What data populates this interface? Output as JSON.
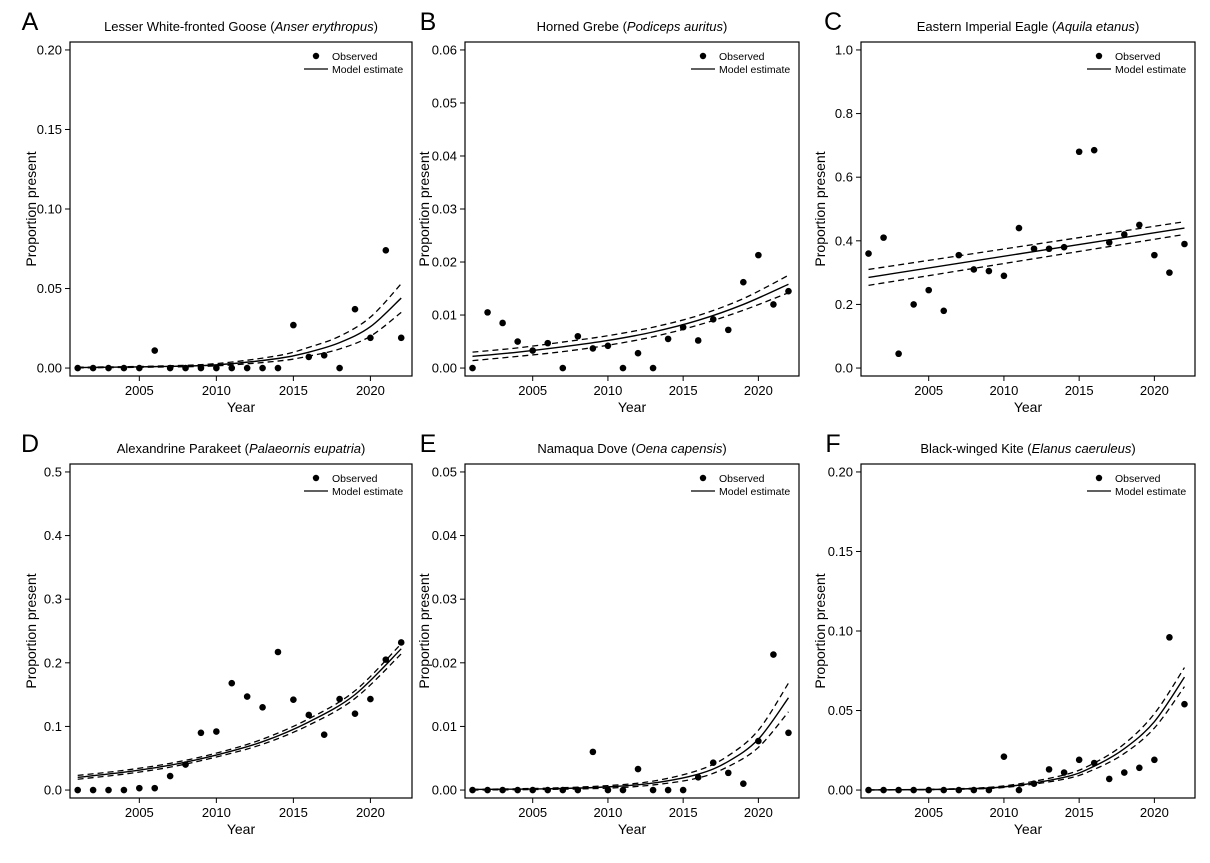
{
  "chart_data": [
    {
      "panel_letter": "A",
      "title_prefix": "Lesser White-fronted Goose (",
      "title_italic": "Anser erythropus",
      "title_suffix": ")",
      "type": "scatter",
      "xlabel": "Year",
      "ylabel": "Proportion present",
      "xlim": [
        2000.5,
        2022.7
      ],
      "ylim": [
        -0.005,
        0.205
      ],
      "xticks": [
        2005,
        2010,
        2015,
        2020
      ],
      "yticks": [
        0.0,
        0.05,
        0.1,
        0.15,
        0.2
      ],
      "ytick_labels": [
        "0.00",
        "0.05",
        "0.10",
        "0.15",
        "0.20"
      ],
      "legend": {
        "observed": "Observed",
        "model": "Model estimate",
        "position": "top-right"
      },
      "series": [
        {
          "name": "Observed",
          "x": [
            2001,
            2002,
            2003,
            2004,
            2005,
            2006,
            2007,
            2008,
            2009,
            2010,
            2011,
            2012,
            2013,
            2014,
            2015,
            2016,
            2017,
            2018,
            2019,
            2020,
            2021,
            2022
          ],
          "y": [
            0,
            0,
            0,
            0,
            0,
            0.011,
            0,
            0,
            0,
            0,
            0,
            0,
            0,
            0,
            0.027,
            0.007,
            0.008,
            0,
            0.037,
            0.019,
            0.074,
            0.019
          ]
        },
        {
          "name": "Model estimate",
          "x": [
            2001,
            2006,
            2010,
            2014,
            2016,
            2018,
            2020,
            2022
          ],
          "y": [
            0.0003,
            0.0009,
            0.002,
            0.006,
            0.01,
            0.016,
            0.026,
            0.044
          ]
        },
        {
          "x": [
            2001,
            2006,
            2010,
            2014,
            2016,
            2018,
            2020,
            2022
          ],
          "y": [
            0.0005,
            0.0012,
            0.0028,
            0.0078,
            0.013,
            0.02,
            0.032,
            0.053
          ]
        },
        {
          "x": [
            2001,
            2006,
            2010,
            2014,
            2016,
            2018,
            2020,
            2022
          ],
          "y": [
            0.0001,
            0.0006,
            0.0014,
            0.0044,
            0.0075,
            0.012,
            0.02,
            0.035
          ]
        }
      ]
    },
    {
      "panel_letter": "B",
      "title_prefix": "Horned Grebe (",
      "title_italic": "Podiceps auritus",
      "title_suffix": ")",
      "type": "scatter",
      "xlabel": "Year",
      "ylabel": "Proportion present",
      "xlim": [
        2000.5,
        2022.7
      ],
      "ylim": [
        -0.0015,
        0.0615
      ],
      "xticks": [
        2005,
        2010,
        2015,
        2020
      ],
      "yticks": [
        0.0,
        0.01,
        0.02,
        0.03,
        0.04,
        0.05,
        0.06
      ],
      "ytick_labels": [
        "0.00",
        "0.01",
        "0.02",
        "0.03",
        "0.04",
        "0.05",
        "0.06"
      ],
      "legend": {
        "observed": "Observed",
        "model": "Model estimate",
        "position": "top-right"
      },
      "series": [
        {
          "name": "Observed",
          "x": [
            2001,
            2002,
            2003,
            2004,
            2005,
            2006,
            2007,
            2008,
            2009,
            2010,
            2011,
            2012,
            2013,
            2014,
            2015,
            2016,
            2017,
            2018,
            2019,
            2020,
            2021,
            2022
          ],
          "y": [
            0,
            0.0105,
            0.0085,
            0.005,
            0.0033,
            0.0047,
            0,
            0.006,
            0.0037,
            0.0042,
            0,
            0.0028,
            0,
            0.0055,
            0.0077,
            0.0052,
            0.0092,
            0.0072,
            0.0162,
            0.0213,
            0.012,
            0.0145
          ]
        },
        {
          "name": "Model estimate",
          "x": [
            2001,
            2004,
            2007,
            2010,
            2013,
            2016,
            2019,
            2022
          ],
          "y": [
            0.0022,
            0.003,
            0.004,
            0.0052,
            0.0068,
            0.009,
            0.012,
            0.0158
          ]
        },
        {
          "x": [
            2001,
            2004,
            2007,
            2010,
            2013,
            2016,
            2019,
            2022
          ],
          "y": [
            0.003,
            0.0038,
            0.0049,
            0.0061,
            0.0077,
            0.0099,
            0.0131,
            0.0175
          ]
        },
        {
          "x": [
            2001,
            2004,
            2007,
            2010,
            2013,
            2016,
            2019,
            2022
          ],
          "y": [
            0.0014,
            0.0022,
            0.0031,
            0.0043,
            0.0059,
            0.0081,
            0.0109,
            0.0142
          ]
        }
      ]
    },
    {
      "panel_letter": "C",
      "title_prefix": "Eastern Imperial Eagle (",
      "title_italic": "Aquila  etanus",
      "title_suffix": ")",
      "type": "scatter",
      "xlabel": "Year",
      "ylabel": "Proportion present",
      "xlim": [
        2000.5,
        2022.7
      ],
      "ylim": [
        -0.025,
        1.025
      ],
      "xticks": [
        2005,
        2010,
        2015,
        2020
      ],
      "yticks": [
        0.0,
        0.2,
        0.4,
        0.6,
        0.8,
        1.0
      ],
      "ytick_labels": [
        "0.0",
        "0.2",
        "0.4",
        "0.6",
        "0.8",
        "1.0"
      ],
      "legend": {
        "observed": "Observed",
        "model": "Model estimate",
        "position": "top-right"
      },
      "series": [
        {
          "name": "Observed",
          "x": [
            2001,
            2002,
            2003,
            2004,
            2005,
            2006,
            2007,
            2008,
            2009,
            2010,
            2011,
            2012,
            2013,
            2014,
            2015,
            2016,
            2017,
            2018,
            2019,
            2020,
            2021,
            2022
          ],
          "y": [
            0.36,
            0.41,
            0.045,
            0.2,
            0.245,
            0.18,
            0.355,
            0.31,
            0.305,
            0.29,
            0.44,
            0.375,
            0.375,
            0.38,
            0.68,
            0.685,
            0.395,
            0.42,
            0.45,
            0.355,
            0.3,
            0.39
          ]
        },
        {
          "name": "Model estimate",
          "x": [
            2001,
            2022
          ],
          "y": [
            0.285,
            0.44
          ]
        },
        {
          "x": [
            2001,
            2022
          ],
          "y": [
            0.31,
            0.46
          ]
        },
        {
          "x": [
            2001,
            2022
          ],
          "y": [
            0.26,
            0.42
          ]
        }
      ]
    },
    {
      "panel_letter": "D",
      "title_prefix": "Alexandrine Parakeet (",
      "title_italic": "Palaeornis eupatria",
      "title_suffix": ")",
      "type": "scatter",
      "xlabel": "Year",
      "ylabel": "Proportion present",
      "xlim": [
        2000.5,
        2022.7
      ],
      "ylim": [
        -0.0125,
        0.5125
      ],
      "xticks": [
        2005,
        2010,
        2015,
        2020
      ],
      "yticks": [
        0.0,
        0.1,
        0.2,
        0.3,
        0.4,
        0.5
      ],
      "ytick_labels": [
        "0.0",
        "0.1",
        "0.2",
        "0.3",
        "0.4",
        "0.5"
      ],
      "legend": {
        "observed": "Observed",
        "model": "Model estimate",
        "position": "top-right"
      },
      "series": [
        {
          "name": "Observed",
          "x": [
            2001,
            2002,
            2003,
            2004,
            2005,
            2006,
            2007,
            2008,
            2009,
            2010,
            2011,
            2012,
            2013,
            2014,
            2015,
            2016,
            2017,
            2018,
            2019,
            2020,
            2021,
            2022
          ],
          "y": [
            0,
            0,
            0,
            0,
            0.003,
            0.003,
            0.022,
            0.04,
            0.09,
            0.092,
            0.168,
            0.147,
            0.13,
            0.217,
            0.142,
            0.118,
            0.087,
            0.143,
            0.12,
            0.143,
            0.205,
            0.232
          ]
        },
        {
          "name": "Model estimate",
          "x": [
            2001,
            2004,
            2007,
            2010,
            2013,
            2016,
            2019,
            2022
          ],
          "y": [
            0.02,
            0.028,
            0.039,
            0.055,
            0.076,
            0.107,
            0.15,
            0.222
          ]
        },
        {
          "x": [
            2001,
            2004,
            2007,
            2010,
            2013,
            2016,
            2019,
            2022
          ],
          "y": [
            0.023,
            0.031,
            0.042,
            0.058,
            0.08,
            0.112,
            0.156,
            0.23
          ]
        },
        {
          "x": [
            2001,
            2004,
            2007,
            2010,
            2013,
            2016,
            2019,
            2022
          ],
          "y": [
            0.017,
            0.025,
            0.036,
            0.052,
            0.072,
            0.102,
            0.144,
            0.214
          ]
        }
      ]
    },
    {
      "panel_letter": "E",
      "title_prefix": "Namaqua Dove (",
      "title_italic": "Oena capensis",
      "title_suffix": ")",
      "type": "scatter",
      "xlabel": "Year",
      "ylabel": "Proportion present",
      "xlim": [
        2000.5,
        2022.7
      ],
      "ylim": [
        -0.00125,
        0.05125
      ],
      "xticks": [
        2005,
        2010,
        2015,
        2020
      ],
      "yticks": [
        0.0,
        0.01,
        0.02,
        0.03,
        0.04,
        0.05
      ],
      "ytick_labels": [
        "0.00",
        "0.01",
        "0.02",
        "0.03",
        "0.04",
        "0.05"
      ],
      "legend": {
        "observed": "Observed",
        "model": "Model estimate",
        "position": "top-right"
      },
      "series": [
        {
          "name": "Observed",
          "x": [
            2001,
            2002,
            2003,
            2004,
            2005,
            2006,
            2007,
            2008,
            2009,
            2010,
            2011,
            2012,
            2013,
            2014,
            2015,
            2016,
            2017,
            2018,
            2019,
            2020,
            2021,
            2022
          ],
          "y": [
            0,
            0,
            0,
            0,
            0,
            0,
            0,
            0,
            0.006,
            0,
            0,
            0.0033,
            0,
            0,
            0,
            0.002,
            0.0043,
            0.0027,
            0.001,
            0.0077,
            0.0213,
            0.009
          ]
        },
        {
          "name": "Model estimate",
          "x": [
            2001,
            2006,
            2010,
            2013,
            2016,
            2018,
            2020,
            2022
          ],
          "y": [
            0.0001,
            0.0002,
            0.0005,
            0.0011,
            0.0025,
            0.0045,
            0.008,
            0.0145
          ]
        },
        {
          "x": [
            2001,
            2006,
            2010,
            2013,
            2016,
            2018,
            2020,
            2022
          ],
          "y": [
            0.0001,
            0.0003,
            0.0007,
            0.0014,
            0.0031,
            0.0054,
            0.0094,
            0.0168
          ]
        },
        {
          "x": [
            2001,
            2006,
            2010,
            2013,
            2016,
            2018,
            2020,
            2022
          ],
          "y": [
            0.0,
            0.0001,
            0.0003,
            0.0008,
            0.0019,
            0.0037,
            0.0067,
            0.0123
          ]
        }
      ]
    },
    {
      "panel_letter": "F",
      "title_prefix": "Black-winged Kite (",
      "title_italic": "Elanus caeruleus",
      "title_suffix": ")",
      "type": "scatter",
      "xlabel": "Year",
      "ylabel": "Proportion present",
      "xlim": [
        2000.5,
        2022.7
      ],
      "ylim": [
        -0.005,
        0.205
      ],
      "xticks": [
        2005,
        2010,
        2015,
        2020
      ],
      "yticks": [
        0.0,
        0.05,
        0.1,
        0.15,
        0.2
      ],
      "ytick_labels": [
        "0.00",
        "0.05",
        "0.10",
        "0.15",
        "0.20"
      ],
      "legend": {
        "observed": "Observed",
        "model": "Model estimate",
        "position": "top-right"
      },
      "series": [
        {
          "name": "Observed",
          "x": [
            2001,
            2002,
            2003,
            2004,
            2005,
            2006,
            2007,
            2008,
            2009,
            2010,
            2011,
            2012,
            2013,
            2014,
            2015,
            2016,
            2017,
            2018,
            2019,
            2020,
            2021,
            2022
          ],
          "y": [
            0,
            0,
            0,
            0,
            0,
            0,
            0,
            0,
            0,
            0.021,
            0,
            0.004,
            0.013,
            0.011,
            0.019,
            0.017,
            0.007,
            0.011,
            0.014,
            0.019,
            0.096,
            0.054
          ]
        },
        {
          "name": "Model estimate",
          "x": [
            2001,
            2006,
            2010,
            2014,
            2016,
            2018,
            2020,
            2022
          ],
          "y": [
            0.0001,
            0.0005,
            0.002,
            0.008,
            0.015,
            0.026,
            0.043,
            0.071
          ]
        },
        {
          "x": [
            2001,
            2006,
            2010,
            2014,
            2016,
            2018,
            2020,
            2022
          ],
          "y": [
            0.0001,
            0.0006,
            0.0026,
            0.0095,
            0.017,
            0.029,
            0.048,
            0.077
          ]
        },
        {
          "x": [
            2001,
            2006,
            2010,
            2014,
            2016,
            2018,
            2020,
            2022
          ],
          "y": [
            0.0,
            0.0004,
            0.0016,
            0.0068,
            0.013,
            0.023,
            0.039,
            0.065
          ]
        }
      ]
    }
  ]
}
